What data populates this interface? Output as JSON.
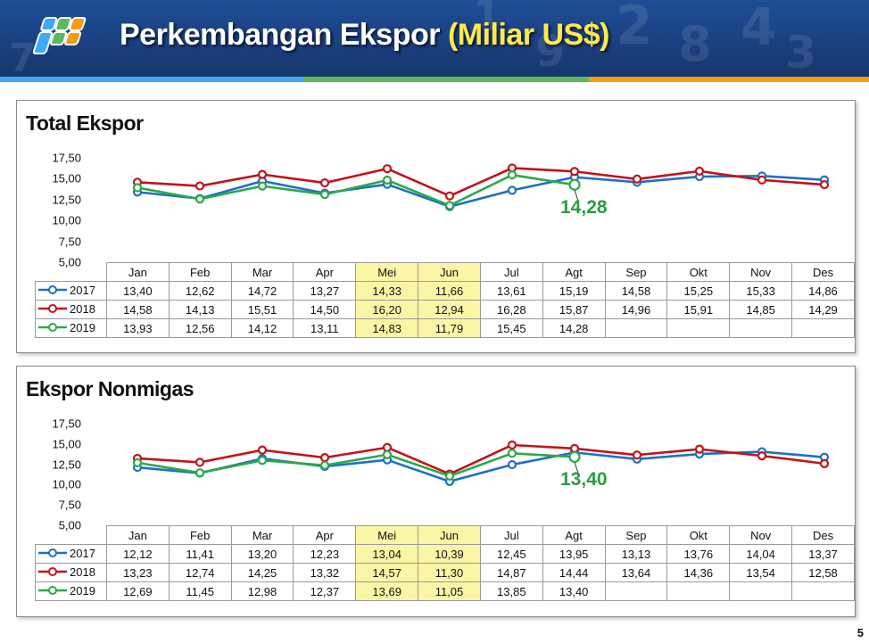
{
  "header": {
    "title": "Perkembangan Ekspor",
    "unit": "(Miliar US$)"
  },
  "page_number": "5",
  "colors": {
    "s2017": "#1f6fc5",
    "s2018": "#c0141b",
    "s2019": "#2ea84b",
    "highlight": "#fbf6a6",
    "header_bg": "#1a3f7f",
    "title_unit": "#ffe94d"
  },
  "months": [
    "Jan",
    "Feb",
    "Mar",
    "Apr",
    "Mei",
    "Jun",
    "Jul",
    "Agt",
    "Sep",
    "Okt",
    "Nov",
    "Des"
  ],
  "chart_data": [
    {
      "type": "line",
      "title": "Total Ekspor",
      "categories": [
        "Jan",
        "Feb",
        "Mar",
        "Apr",
        "Mei",
        "Jun",
        "Jul",
        "Agt",
        "Sep",
        "Okt",
        "Nov",
        "Des"
      ],
      "ylim": [
        5,
        17.5
      ],
      "yticks": [
        "17,50",
        "15,00",
        "12,50",
        "10,00",
        "7,50",
        "5,00"
      ],
      "grid": false,
      "legend": "table-left",
      "highlight_columns": [
        "Mei",
        "Jun"
      ],
      "callout": "14,28",
      "series": [
        {
          "name": "2017",
          "values": [
            13.4,
            12.62,
            14.72,
            13.27,
            14.33,
            11.66,
            13.61,
            15.19,
            14.58,
            15.25,
            15.33,
            14.86
          ],
          "labels": [
            "13,40",
            "12,62",
            "14,72",
            "13,27",
            "14,33",
            "11,66",
            "13,61",
            "15,19",
            "14,58",
            "15,25",
            "15,33",
            "14,86"
          ]
        },
        {
          "name": "2018",
          "values": [
            14.58,
            14.13,
            15.51,
            14.5,
            16.2,
            12.94,
            16.28,
            15.87,
            14.96,
            15.91,
            14.85,
            14.29
          ],
          "labels": [
            "14,58",
            "14,13",
            "15,51",
            "14,50",
            "16,20",
            "12,94",
            "16,28",
            "15,87",
            "14,96",
            "15,91",
            "14,85",
            "14,29"
          ]
        },
        {
          "name": "2019",
          "values": [
            13.93,
            12.56,
            14.12,
            13.11,
            14.83,
            11.79,
            15.45,
            14.28,
            null,
            null,
            null,
            null
          ],
          "labels": [
            "13,93",
            "12,56",
            "14,12",
            "13,11",
            "14,83",
            "11,79",
            "15,45",
            "14,28",
            "",
            "",
            "",
            ""
          ]
        }
      ]
    },
    {
      "type": "line",
      "title": "Ekspor Nonmigas",
      "categories": [
        "Jan",
        "Feb",
        "Mar",
        "Apr",
        "Mei",
        "Jun",
        "Jul",
        "Agt",
        "Sep",
        "Okt",
        "Nov",
        "Des"
      ],
      "ylim": [
        5,
        17.5
      ],
      "yticks": [
        "17,50",
        "15,00",
        "12,50",
        "10,00",
        "7,50",
        "5,00"
      ],
      "grid": false,
      "legend": "table-left",
      "highlight_columns": [
        "Mei",
        "Jun"
      ],
      "callout": "13,40",
      "series": [
        {
          "name": "2017",
          "values": [
            12.12,
            11.41,
            13.2,
            12.23,
            13.04,
            10.39,
            12.45,
            13.95,
            13.13,
            13.76,
            14.04,
            13.37
          ],
          "labels": [
            "12,12",
            "11,41",
            "13,20",
            "12,23",
            "13,04",
            "10,39",
            "12,45",
            "13,95",
            "13,13",
            "13,76",
            "14,04",
            "13,37"
          ]
        },
        {
          "name": "2018",
          "values": [
            13.23,
            12.74,
            14.25,
            13.32,
            14.57,
            11.3,
            14.87,
            14.44,
            13.64,
            14.36,
            13.54,
            12.58
          ],
          "labels": [
            "13,23",
            "12,74",
            "14,25",
            "13,32",
            "14,57",
            "11,30",
            "14,87",
            "14,44",
            "13,64",
            "14,36",
            "13,54",
            "12,58"
          ]
        },
        {
          "name": "2019",
          "values": [
            12.69,
            11.45,
            12.98,
            12.37,
            13.69,
            11.05,
            13.85,
            13.4,
            null,
            null,
            null,
            null
          ],
          "labels": [
            "12,69",
            "11,45",
            "12,98",
            "12,37",
            "13,69",
            "11,05",
            "13,85",
            "13,40",
            "",
            "",
            "",
            ""
          ]
        }
      ]
    }
  ]
}
